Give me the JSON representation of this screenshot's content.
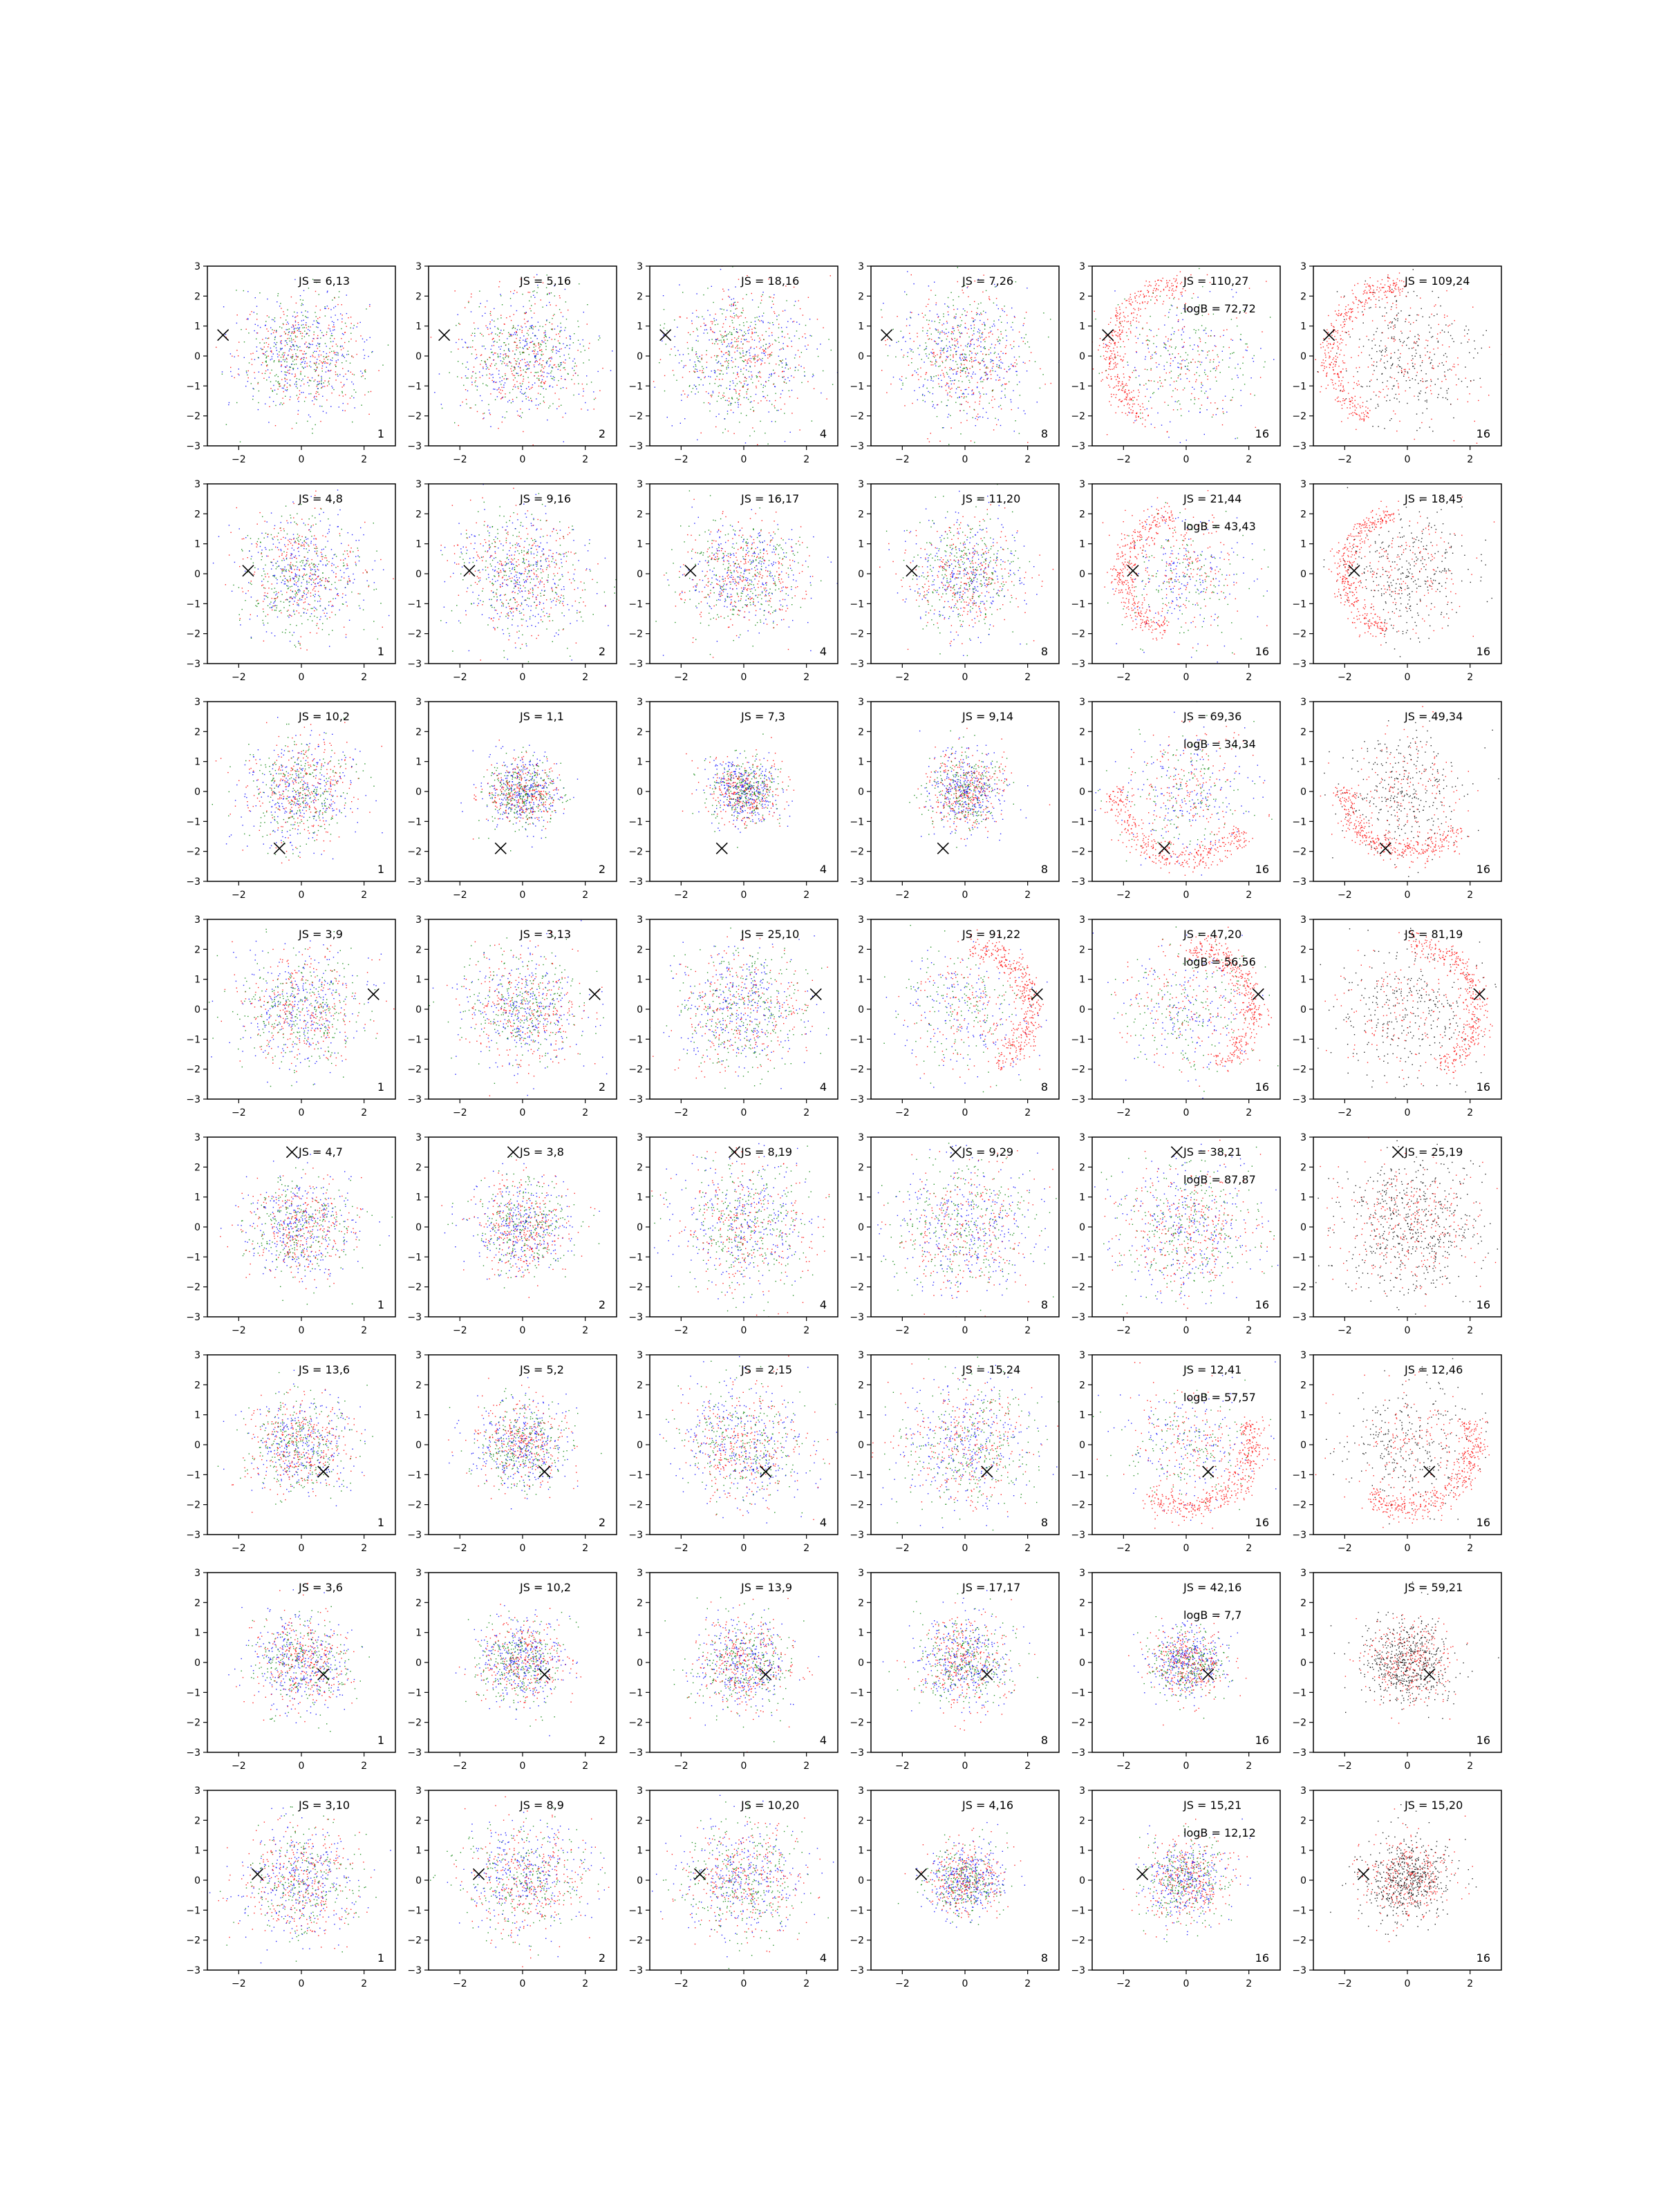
{
  "figure": {
    "rows": 8,
    "cols": 6,
    "xlim": [
      -3,
      3
    ],
    "ylim": [
      -3,
      3
    ],
    "xticks": [
      -2,
      0,
      2
    ],
    "yticks": [
      -3,
      -2,
      -1,
      0,
      1,
      2,
      3
    ],
    "palette": {
      "mixed": [
        "#ff0000",
        "#0000ff",
        "#008000"
      ],
      "red": "#ff0000",
      "black": "#000000",
      "marker": "#000000"
    }
  },
  "chart_data": [
    {
      "type": "scatter",
      "row": 0,
      "col": 0,
      "js": "JS = 6,13",
      "corner": "1",
      "marker": [
        -2.5,
        0.7
      ],
      "style": "mixed",
      "ring": false,
      "spread": 1.0
    },
    {
      "type": "scatter",
      "row": 0,
      "col": 1,
      "js": "JS = 5,16",
      "corner": "2",
      "marker": [
        -2.5,
        0.7
      ],
      "style": "mixed",
      "ring": false,
      "spread": 1.05
    },
    {
      "type": "scatter",
      "row": 0,
      "col": 2,
      "js": "JS = 18,16",
      "corner": "4",
      "marker": [
        -2.5,
        0.7
      ],
      "style": "mixed",
      "ring": false,
      "spread": 1.15
    },
    {
      "type": "scatter",
      "row": 0,
      "col": 3,
      "js": "JS = 7,26",
      "corner": "8",
      "marker": [
        -2.5,
        0.7
      ],
      "style": "mixed",
      "ring": false,
      "spread": 1.1
    },
    {
      "type": "scatter",
      "row": 0,
      "col": 4,
      "js": "JS = 110,27",
      "logb": "logB = 72,72",
      "corner": "16",
      "marker": [
        -2.5,
        0.7
      ],
      "style": "mixed",
      "ring": true,
      "spread": 1.2
    },
    {
      "type": "scatter",
      "row": 0,
      "col": 5,
      "js": "JS = 109,24",
      "corner": "16",
      "marker": [
        -2.5,
        0.7
      ],
      "style": "redblack",
      "ring": true,
      "spread": 1.2
    },
    {
      "type": "scatter",
      "row": 1,
      "col": 0,
      "js": "JS = 4,8",
      "corner": "1",
      "marker": [
        -1.7,
        0.1
      ],
      "style": "mixed",
      "ring": false,
      "spread": 1.0
    },
    {
      "type": "scatter",
      "row": 1,
      "col": 1,
      "js": "JS = 9,16",
      "corner": "2",
      "marker": [
        -1.7,
        0.1
      ],
      "style": "mixed",
      "ring": false,
      "spread": 1.05
    },
    {
      "type": "scatter",
      "row": 1,
      "col": 2,
      "js": "JS = 16,17",
      "corner": "4",
      "marker": [
        -1.7,
        0.1
      ],
      "style": "mixed",
      "ring": false,
      "spread": 0.95
    },
    {
      "type": "scatter",
      "row": 1,
      "col": 3,
      "js": "JS = 11,20",
      "corner": "8",
      "marker": [
        -1.7,
        0.1
      ],
      "style": "mixed",
      "ring": false,
      "spread": 0.95
    },
    {
      "type": "scatter",
      "row": 1,
      "col": 4,
      "js": "JS = 21,44",
      "logb": "logB = 43,43",
      "corner": "16",
      "marker": [
        -1.7,
        0.1
      ],
      "style": "mixed",
      "ring": true,
      "spread": 1.0
    },
    {
      "type": "scatter",
      "row": 1,
      "col": 5,
      "js": "JS = 18,45",
      "corner": "16",
      "marker": [
        -1.7,
        0.1
      ],
      "style": "redblack",
      "ring": true,
      "spread": 1.0
    },
    {
      "type": "scatter",
      "row": 2,
      "col": 0,
      "js": "JS = 10,2",
      "corner": "1",
      "marker": [
        -0.7,
        -1.9
      ],
      "style": "mixed",
      "ring": false,
      "spread": 0.9
    },
    {
      "type": "scatter",
      "row": 2,
      "col": 1,
      "js": "JS = 1,1",
      "corner": "2",
      "marker": [
        -0.7,
        -1.9
      ],
      "style": "mixed",
      "ring": false,
      "spread": 0.6
    },
    {
      "type": "scatter",
      "row": 2,
      "col": 2,
      "js": "JS = 7,3",
      "corner": "4",
      "marker": [
        -0.7,
        -1.9
      ],
      "style": "mixed",
      "ring": false,
      "spread": 0.55
    },
    {
      "type": "scatter",
      "row": 2,
      "col": 3,
      "js": "JS = 9,14",
      "corner": "8",
      "marker": [
        -0.7,
        -1.9
      ],
      "style": "mixed",
      "ring": false,
      "spread": 0.65
    },
    {
      "type": "scatter",
      "row": 2,
      "col": 4,
      "js": "JS = 69,36",
      "logb": "logB = 34,34",
      "corner": "16",
      "marker": [
        -0.7,
        -1.9
      ],
      "style": "mixed",
      "ring": true,
      "spread": 1.1
    },
    {
      "type": "scatter",
      "row": 2,
      "col": 5,
      "js": "JS = 49,34",
      "corner": "16",
      "marker": [
        -0.7,
        -1.9
      ],
      "style": "redblack",
      "ring": true,
      "spread": 1.0
    },
    {
      "type": "scatter",
      "row": 3,
      "col": 0,
      "js": "JS = 3,9",
      "corner": "1",
      "marker": [
        2.3,
        0.5
      ],
      "style": "mixed",
      "ring": false,
      "spread": 1.0
    },
    {
      "type": "scatter",
      "row": 3,
      "col": 1,
      "js": "JS = 3,13",
      "corner": "2",
      "marker": [
        2.3,
        0.5
      ],
      "style": "mixed",
      "ring": false,
      "spread": 1.0
    },
    {
      "type": "scatter",
      "row": 3,
      "col": 2,
      "js": "JS = 25,10",
      "corner": "4",
      "marker": [
        2.3,
        0.5
      ],
      "style": "mixed",
      "ring": false,
      "spread": 1.0
    },
    {
      "type": "scatter",
      "row": 3,
      "col": 3,
      "js": "JS = 91,22",
      "corner": "8",
      "marker": [
        2.3,
        0.5
      ],
      "style": "mixed",
      "ring": true,
      "spread": 1.05
    },
    {
      "type": "scatter",
      "row": 3,
      "col": 4,
      "js": "JS = 47,20",
      "logb": "logB = 56,56",
      "corner": "16",
      "marker": [
        2.3,
        0.5
      ],
      "style": "mixed",
      "ring": true,
      "spread": 1.05
    },
    {
      "type": "scatter",
      "row": 3,
      "col": 5,
      "js": "JS = 81,19",
      "corner": "16",
      "marker": [
        2.3,
        0.5
      ],
      "style": "redblack",
      "ring": true,
      "spread": 1.1
    },
    {
      "type": "scatter",
      "row": 4,
      "col": 0,
      "js": "JS = 4,7",
      "corner": "1",
      "marker": [
        -0.3,
        2.5
      ],
      "style": "mixed",
      "ring": false,
      "spread": 0.85
    },
    {
      "type": "scatter",
      "row": 4,
      "col": 1,
      "js": "JS = 3,8",
      "corner": "2",
      "marker": [
        -0.3,
        2.5
      ],
      "style": "mixed",
      "ring": false,
      "spread": 0.8
    },
    {
      "type": "scatter",
      "row": 4,
      "col": 2,
      "js": "JS = 8,19",
      "corner": "4",
      "marker": [
        -0.3,
        2.5
      ],
      "style": "mixed",
      "ring": false,
      "spread": 1.1
    },
    {
      "type": "scatter",
      "row": 4,
      "col": 3,
      "js": "JS = 9,29",
      "corner": "8",
      "marker": [
        -0.3,
        2.5
      ],
      "style": "mixed",
      "ring": false,
      "spread": 1.15
    },
    {
      "type": "scatter",
      "row": 4,
      "col": 4,
      "js": "JS = 38,21",
      "logb": "logB = 87,87",
      "corner": "16",
      "marker": [
        -0.3,
        2.5
      ],
      "style": "mixed",
      "ring": false,
      "spread": 1.15
    },
    {
      "type": "scatter",
      "row": 4,
      "col": 5,
      "js": "JS = 25,19",
      "corner": "16",
      "marker": [
        -0.3,
        2.5
      ],
      "style": "redblack",
      "ring": false,
      "spread": 1.15
    },
    {
      "type": "scatter",
      "row": 5,
      "col": 0,
      "js": "JS = 13,6",
      "corner": "1",
      "marker": [
        0.7,
        -0.9
      ],
      "style": "mixed",
      "ring": false,
      "spread": 0.8
    },
    {
      "type": "scatter",
      "row": 5,
      "col": 1,
      "js": "JS = 5,2",
      "corner": "2",
      "marker": [
        0.7,
        -0.9
      ],
      "style": "mixed",
      "ring": false,
      "spread": 0.75
    },
    {
      "type": "scatter",
      "row": 5,
      "col": 2,
      "js": "JS = 2,15",
      "corner": "4",
      "marker": [
        0.7,
        -0.9
      ],
      "style": "mixed",
      "ring": false,
      "spread": 0.95
    },
    {
      "type": "scatter",
      "row": 5,
      "col": 3,
      "js": "JS = 15,24",
      "corner": "8",
      "marker": [
        0.7,
        -0.9
      ],
      "style": "mixed",
      "ring": false,
      "spread": 1.05
    },
    {
      "type": "scatter",
      "row": 5,
      "col": 4,
      "js": "JS = 12,41",
      "logb": "logB = 57,57",
      "corner": "16",
      "marker": [
        0.7,
        -0.9
      ],
      "style": "mixed",
      "ring": true,
      "spread": 1.05
    },
    {
      "type": "scatter",
      "row": 5,
      "col": 5,
      "js": "JS = 12,46",
      "corner": "16",
      "marker": [
        0.7,
        -0.9
      ],
      "style": "redblack",
      "ring": true,
      "spread": 1.05
    },
    {
      "type": "scatter",
      "row": 6,
      "col": 0,
      "js": "JS = 3,6",
      "corner": "1",
      "marker": [
        0.7,
        -0.4
      ],
      "style": "mixed",
      "ring": false,
      "spread": 0.8
    },
    {
      "type": "scatter",
      "row": 6,
      "col": 1,
      "js": "JS = 10,2",
      "corner": "2",
      "marker": [
        0.7,
        -0.4
      ],
      "style": "mixed",
      "ring": false,
      "spread": 0.7
    },
    {
      "type": "scatter",
      "row": 6,
      "col": 2,
      "js": "JS = 13,9",
      "corner": "4",
      "marker": [
        0.7,
        -0.4
      ],
      "style": "mixed",
      "ring": false,
      "spread": 0.75
    },
    {
      "type": "scatter",
      "row": 6,
      "col": 3,
      "js": "JS = 17,17",
      "corner": "8",
      "marker": [
        0.7,
        -0.4
      ],
      "style": "mixed",
      "ring": false,
      "spread": 0.75
    },
    {
      "type": "scatter",
      "row": 6,
      "col": 4,
      "js": "JS = 42,16",
      "logb": "logB = 7,7",
      "corner": "16",
      "marker": [
        0.7,
        -0.4
      ],
      "style": "mixed",
      "ring": false,
      "spread": 0.6
    },
    {
      "type": "scatter",
      "row": 6,
      "col": 5,
      "js": "JS = 59,21",
      "corner": "16",
      "marker": [
        0.7,
        -0.4
      ],
      "style": "redblack",
      "ring": false,
      "spread": 0.7
    },
    {
      "type": "scatter",
      "row": 7,
      "col": 0,
      "js": "JS = 3,10",
      "corner": "1",
      "marker": [
        -1.4,
        0.2
      ],
      "style": "mixed",
      "ring": false,
      "spread": 0.95
    },
    {
      "type": "scatter",
      "row": 7,
      "col": 1,
      "js": "JS = 8,9",
      "corner": "2",
      "marker": [
        -1.4,
        0.2
      ],
      "style": "mixed",
      "ring": false,
      "spread": 0.95
    },
    {
      "type": "scatter",
      "row": 7,
      "col": 2,
      "js": "JS = 10,20",
      "corner": "4",
      "marker": [
        -1.4,
        0.2
      ],
      "style": "mixed",
      "ring": false,
      "spread": 0.95
    },
    {
      "type": "scatter",
      "row": 7,
      "col": 3,
      "js": "JS = 4,16",
      "corner": "8",
      "marker": [
        -1.4,
        0.2
      ],
      "style": "mixed",
      "ring": false,
      "spread": 0.6
    },
    {
      "type": "scatter",
      "row": 7,
      "col": 4,
      "js": "JS = 15,21",
      "logb": "logB = 12,12",
      "corner": "16",
      "marker": [
        -1.4,
        0.2
      ],
      "style": "mixed",
      "ring": false,
      "spread": 0.7
    },
    {
      "type": "scatter",
      "row": 7,
      "col": 5,
      "js": "JS = 15,20",
      "corner": "16",
      "marker": [
        -1.4,
        0.2
      ],
      "style": "redblack",
      "ring": false,
      "spread": 0.7
    }
  ]
}
